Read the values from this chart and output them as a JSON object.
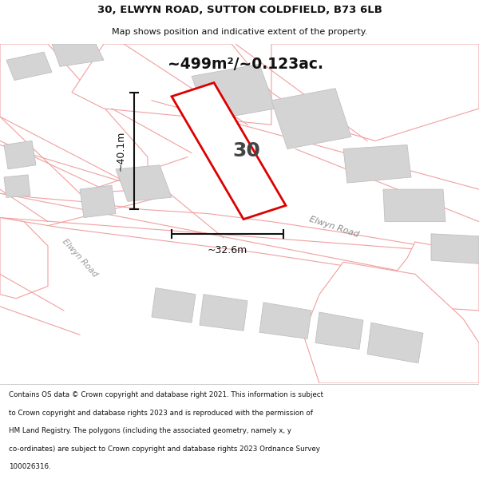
{
  "title_line1": "30, ELWYN ROAD, SUTTON COLDFIELD, B73 6LB",
  "title_line2": "Map shows position and indicative extent of the property.",
  "area_text": "~499m²/~0.123ac.",
  "property_number": "30",
  "dim_width": "~32.6m",
  "dim_height": "~40.1m",
  "road_label_1": "Elwyn Road",
  "road_label_2": "Elwyn Road",
  "footer_lines": [
    "Contains OS data © Crown copyright and database right 2021. This information is subject",
    "to Crown copyright and database rights 2023 and is reproduced with the permission of",
    "HM Land Registry. The polygons (including the associated geometry, namely x, y",
    "co-ordinates) are subject to Crown copyright and database rights 2023 Ordnance Survey",
    "100026316."
  ],
  "map_bg": "#f5f5f5",
  "road_bg": "#ffffff",
  "building_color": "#d4d4d4",
  "building_edge": "#c0c0c0",
  "plot_line_color": "#dd0000",
  "plot_fill_color": "#ffffff",
  "road_line_color": "#f0a0a0",
  "dim_line_color": "#111111",
  "title_color": "#111111",
  "footer_color": "#111111",
  "area_color": "#111111"
}
